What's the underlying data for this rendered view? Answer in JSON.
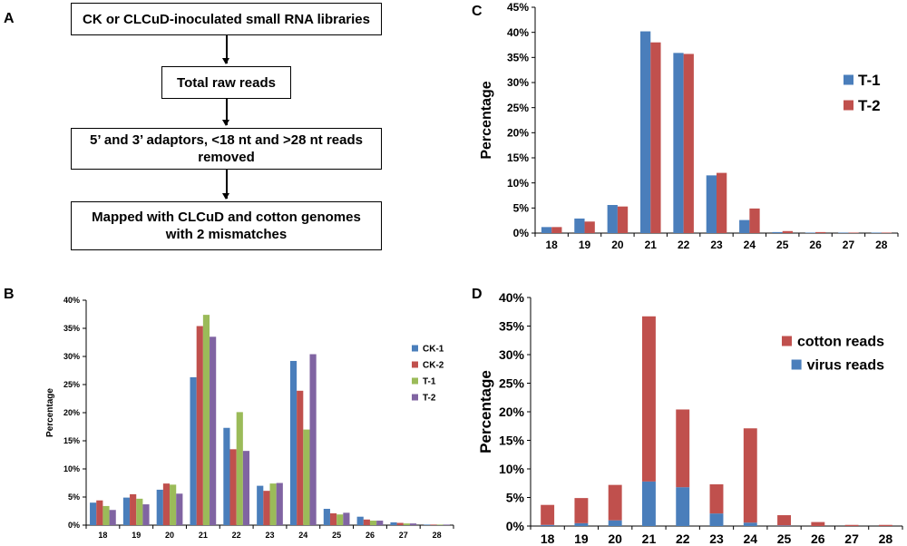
{
  "panels": {
    "A": "A",
    "B": "B",
    "C": "C",
    "D": "D"
  },
  "flowchart": {
    "steps": [
      "CK or CLCuD-inoculated small RNA libraries",
      "Total raw reads",
      "5’ and 3’ adaptors, <18 nt and >28 nt reads removed",
      "Mapped with CLCuD and cotton genomes with 2 mismatches"
    ]
  },
  "colors": {
    "blue": "#4a7ebb",
    "red": "#c0504d",
    "green": "#9bbb59",
    "purple": "#8064a2"
  },
  "chart_data": [
    {
      "panel": "B",
      "type": "bar",
      "title": "",
      "xlabel": "",
      "ylabel": "Percentage",
      "categories": [
        "18",
        "19",
        "20",
        "21",
        "22",
        "23",
        "24",
        "25",
        "26",
        "27",
        "28"
      ],
      "ylim": [
        0,
        40
      ],
      "yticks": [
        "0%",
        "5%",
        "10%",
        "15%",
        "20%",
        "25%",
        "30%",
        "35%",
        "40%"
      ],
      "legend_position": "right",
      "series": [
        {
          "name": "CK-1",
          "color": "#4a7ebb",
          "values": [
            4.0,
            4.9,
            6.3,
            26.3,
            17.3,
            7.0,
            29.2,
            2.9,
            1.5,
            0.5,
            0.1
          ]
        },
        {
          "name": "CK-2",
          "color": "#c0504d",
          "values": [
            4.4,
            5.5,
            7.4,
            35.4,
            13.5,
            6.1,
            23.9,
            2.1,
            1.0,
            0.4,
            0.1
          ]
        },
        {
          "name": "T-1",
          "color": "#9bbb59",
          "values": [
            3.4,
            4.7,
            7.2,
            37.4,
            20.1,
            7.4,
            17.0,
            1.9,
            0.8,
            0.3,
            0.1
          ]
        },
        {
          "name": "T-2",
          "color": "#8064a2",
          "values": [
            2.7,
            3.7,
            5.6,
            33.5,
            13.2,
            7.5,
            30.4,
            2.2,
            0.8,
            0.3,
            0.1
          ]
        }
      ]
    },
    {
      "panel": "C",
      "type": "bar",
      "title": "",
      "xlabel": "",
      "ylabel": "Percentage",
      "categories": [
        "18",
        "19",
        "20",
        "21",
        "22",
        "23",
        "24",
        "25",
        "26",
        "27",
        "28"
      ],
      "ylim": [
        0,
        45
      ],
      "yticks": [
        "0%",
        "5%",
        "10%",
        "15%",
        "20%",
        "25%",
        "30%",
        "35%",
        "40%",
        "45%"
      ],
      "legend_position": "right",
      "series": [
        {
          "name": "T-1",
          "color": "#4a7ebb",
          "values": [
            1.2,
            2.9,
            5.6,
            40.2,
            35.9,
            11.5,
            2.6,
            0.2,
            0.1,
            0.1,
            0.1
          ]
        },
        {
          "name": "T-2",
          "color": "#c0504d",
          "values": [
            1.2,
            2.3,
            5.3,
            38.0,
            35.7,
            12.0,
            4.9,
            0.4,
            0.2,
            0.1,
            0.1
          ]
        }
      ]
    },
    {
      "panel": "D",
      "type": "bar",
      "stacked": true,
      "title": "",
      "xlabel": "",
      "ylabel": "Percentage",
      "categories": [
        "18",
        "19",
        "20",
        "21",
        "22",
        "23",
        "24",
        "25",
        "26",
        "27",
        "28"
      ],
      "ylim": [
        0,
        40
      ],
      "yticks": [
        "0%",
        "5%",
        "10%",
        "15%",
        "20%",
        "25%",
        "30%",
        "35%",
        "40%"
      ],
      "legend_position": "right",
      "series": [
        {
          "name": "virus reads",
          "color": "#4a7ebb",
          "values": [
            0.2,
            0.5,
            1.0,
            7.8,
            6.8,
            2.2,
            0.6,
            0.1,
            0.0,
            0.0,
            0.0
          ]
        },
        {
          "name": "cotton reads",
          "color": "#c0504d",
          "values": [
            3.5,
            4.4,
            6.2,
            28.9,
            13.6,
            5.1,
            16.5,
            1.8,
            0.7,
            0.2,
            0.2
          ]
        }
      ],
      "legend_order": [
        "cotton reads",
        "virus reads"
      ]
    }
  ]
}
